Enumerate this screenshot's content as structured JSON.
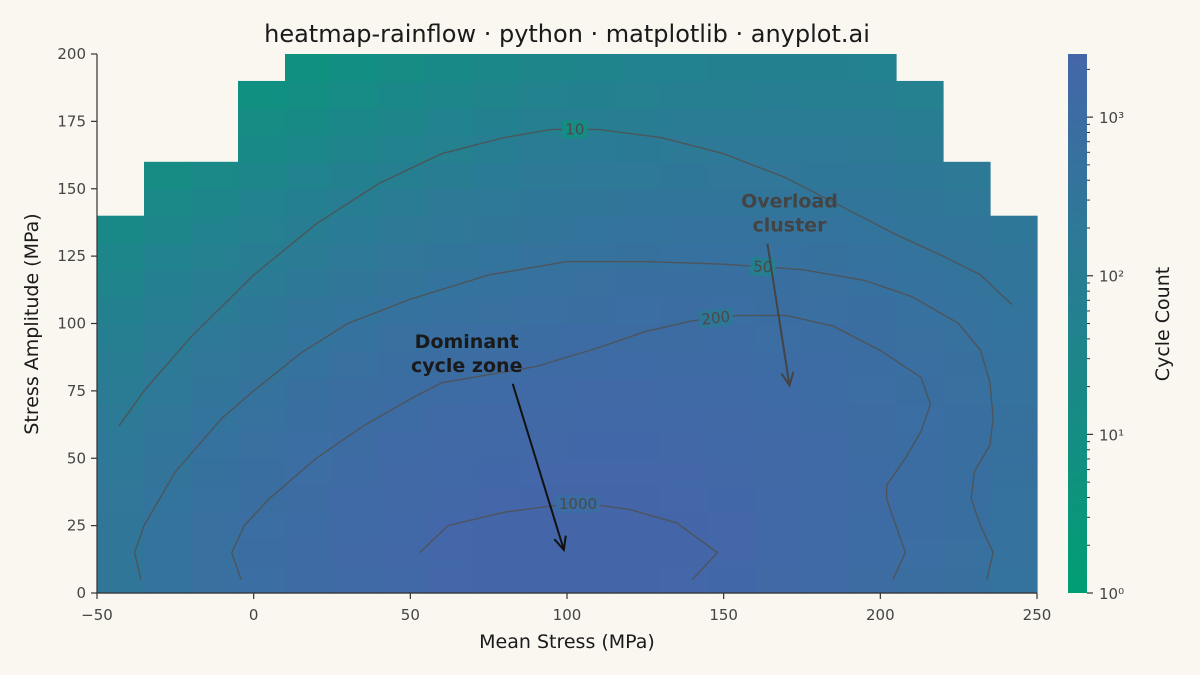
{
  "chart_data": {
    "type": "heatmap",
    "title": "heatmap-rainflow · python · matplotlib · anyplot.ai",
    "xlabel": "Mean Stress (MPa)",
    "ylabel": "Stress Amplitude (MPa)",
    "xlim": [
      -50,
      250
    ],
    "ylim": [
      0,
      200
    ],
    "x_ticks": [
      -50,
      0,
      50,
      100,
      150,
      200,
      250
    ],
    "x_tick_labels": [
      "−50",
      "0",
      "50",
      "100",
      "150",
      "200",
      "250"
    ],
    "y_ticks": [
      0,
      25,
      50,
      75,
      100,
      125,
      150,
      175,
      200
    ],
    "y_tick_labels": [
      "0",
      "25",
      "50",
      "75",
      "100",
      "125",
      "150",
      "175",
      "200"
    ],
    "x_bin_edges": [
      -50,
      -35,
      -20,
      -5,
      10,
      25,
      40,
      55,
      70,
      85,
      100,
      115,
      130,
      145,
      160,
      175,
      190,
      205,
      220,
      235,
      250
    ],
    "y_bin_edges": [
      0,
      10,
      20,
      30,
      40,
      50,
      60,
      70,
      80,
      90,
      100,
      110,
      120,
      130,
      140,
      150,
      160,
      170,
      180,
      190,
      200
    ],
    "grid": false,
    "colorbar": {
      "label": "Cycle Count",
      "scale": "log",
      "range": [
        1,
        2500
      ],
      "ticks": [
        1,
        10,
        100,
        1000
      ],
      "tick_labels": [
        "10⁰",
        "10¹",
        "10²",
        "10³"
      ],
      "color_low": "#009e73",
      "color_high": "#4466a9"
    },
    "data_extent_max_amplitude_by_mean_bin": [
      140,
      160,
      160,
      190,
      200,
      200,
      200,
      200,
      200,
      200,
      200,
      200,
      200,
      200,
      200,
      200,
      200,
      190,
      160,
      140
    ],
    "peaks": [
      {
        "mean": 100,
        "amplitude": 10,
        "count": 2500
      },
      {
        "mean": 175,
        "amplitude": 78,
        "count": 600
      }
    ],
    "contours": [
      {
        "level": 10,
        "label": "10",
        "points": [
          [
            -43,
            62
          ],
          [
            -35,
            75
          ],
          [
            -20,
            95
          ],
          [
            0,
            118
          ],
          [
            20,
            137
          ],
          [
            40,
            152
          ],
          [
            60,
            163
          ],
          [
            80,
            169
          ],
          [
            95,
            172
          ],
          [
            110,
            172
          ],
          [
            130,
            169
          ],
          [
            150,
            163
          ],
          [
            170,
            154
          ],
          [
            190,
            142
          ],
          [
            205,
            133
          ],
          [
            220,
            125
          ],
          [
            232,
            118
          ],
          [
            242,
            107
          ]
        ]
      },
      {
        "level": 50,
        "label": "50",
        "points": [
          [
            -36,
            5
          ],
          [
            -38,
            15
          ],
          [
            -35,
            25
          ],
          [
            -25,
            45
          ],
          [
            -10,
            65
          ],
          [
            0,
            75
          ],
          [
            15,
            89
          ],
          [
            30,
            100
          ],
          [
            50,
            109
          ],
          [
            75,
            118
          ],
          [
            100,
            123
          ],
          [
            125,
            123
          ],
          [
            150,
            122
          ],
          [
            175,
            120
          ],
          [
            195,
            116
          ],
          [
            210,
            110
          ],
          [
            225,
            100
          ],
          [
            232,
            90
          ],
          [
            235,
            78
          ],
          [
            236,
            65
          ],
          [
            235,
            55
          ],
          [
            230,
            45
          ],
          [
            229,
            35
          ],
          [
            232,
            25
          ],
          [
            236,
            15
          ],
          [
            234,
            5
          ]
        ]
      },
      {
        "level": 200,
        "label": "200",
        "points": [
          [
            -4,
            5
          ],
          [
            -7,
            15
          ],
          [
            -3,
            25
          ],
          [
            5,
            35
          ],
          [
            20,
            50
          ],
          [
            35,
            62
          ],
          [
            50,
            72
          ],
          [
            60,
            78
          ],
          [
            75,
            81
          ],
          [
            90,
            84
          ],
          [
            110,
            91
          ],
          [
            125,
            97
          ],
          [
            140,
            101
          ],
          [
            155,
            103
          ],
          [
            170,
            103
          ],
          [
            185,
            99
          ],
          [
            200,
            90
          ],
          [
            213,
            80
          ],
          [
            216,
            70
          ],
          [
            213,
            60
          ],
          [
            208,
            50
          ],
          [
            202,
            40
          ],
          [
            202,
            35
          ],
          [
            205,
            25
          ],
          [
            208,
            15
          ],
          [
            204,
            5
          ]
        ]
      },
      {
        "level": 1000,
        "label": "1000",
        "points": [
          [
            53,
            15
          ],
          [
            62,
            25
          ],
          [
            80,
            30
          ],
          [
            100,
            33
          ],
          [
            107,
            33
          ],
          [
            120,
            31
          ],
          [
            135,
            26
          ],
          [
            148,
            15
          ],
          [
            140,
            5
          ]
        ]
      }
    ],
    "annotations": [
      {
        "lines": [
          "Dominant",
          "cycle zone"
        ],
        "text_at": [
          68,
          88
        ],
        "arrow_to": [
          99,
          16
        ],
        "color": "#111111"
      },
      {
        "lines": [
          "Overload",
          "cluster"
        ],
        "text_at": [
          171,
          140
        ],
        "arrow_to": [
          171,
          77
        ],
        "color": "#444444"
      }
    ]
  }
}
